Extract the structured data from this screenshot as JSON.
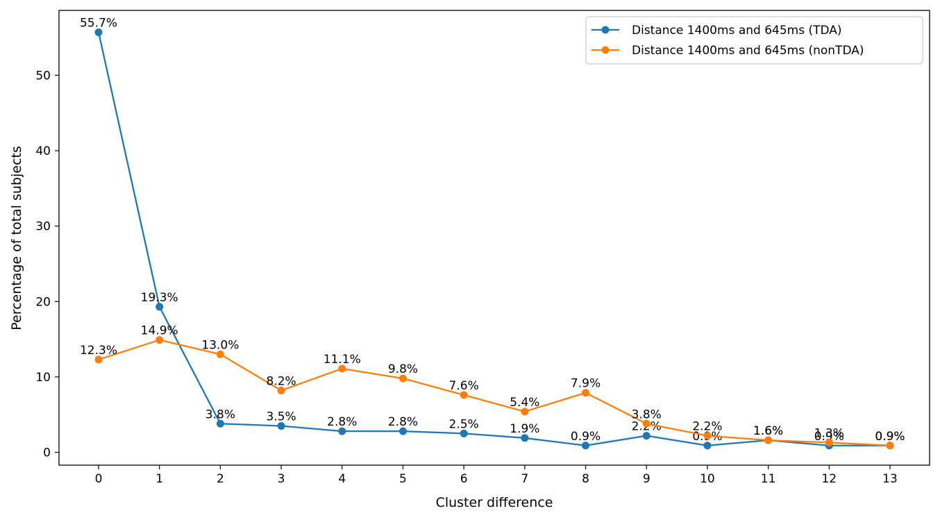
{
  "chart_data": {
    "type": "line",
    "title": "",
    "xlabel": "Cluster difference",
    "ylabel": "Percentage of total subjects",
    "x": [
      0,
      1,
      2,
      3,
      4,
      5,
      6,
      7,
      8,
      9,
      10,
      11,
      12,
      13
    ],
    "xticks": [
      "0",
      "1",
      "2",
      "3",
      "4",
      "5",
      "6",
      "7",
      "8",
      "9",
      "10",
      "11",
      "12",
      "13"
    ],
    "yticks": [
      "0",
      "10",
      "20",
      "30",
      "40",
      "50"
    ],
    "xlim": [
      -0.65,
      13.65
    ],
    "ylim": [
      -1.7,
      58.6
    ],
    "grid": false,
    "legend_position": "top-right",
    "series": [
      {
        "name": "Distance 1400ms and 645ms (TDA)",
        "color": "#1f77b4",
        "values": [
          55.7,
          19.3,
          3.8,
          3.5,
          2.8,
          2.8,
          2.5,
          1.9,
          0.9,
          2.2,
          0.9,
          1.6,
          0.9,
          0.9
        ],
        "labels": [
          "55.7%",
          "19.3%",
          "3.8%",
          "3.5%",
          "2.8%",
          "2.8%",
          "2.5%",
          "1.9%",
          "0.9%",
          "2.2%",
          "0.9%",
          "1.6%",
          "0.9%",
          "0.9%"
        ]
      },
      {
        "name": "Distance 1400ms and 645ms (nonTDA)",
        "color": "#ff7f0e",
        "values": [
          12.3,
          14.9,
          13.0,
          8.2,
          11.1,
          9.8,
          7.6,
          5.4,
          7.9,
          3.8,
          2.2,
          1.6,
          1.3,
          0.9
        ],
        "labels": [
          "12.3%",
          "14.9%",
          "13.0%",
          "8.2%",
          "11.1%",
          "9.8%",
          "7.6%",
          "5.4%",
          "7.9%",
          "3.8%",
          "2.2%",
          "1.6%",
          "1.3%",
          "0.9%"
        ]
      }
    ]
  }
}
